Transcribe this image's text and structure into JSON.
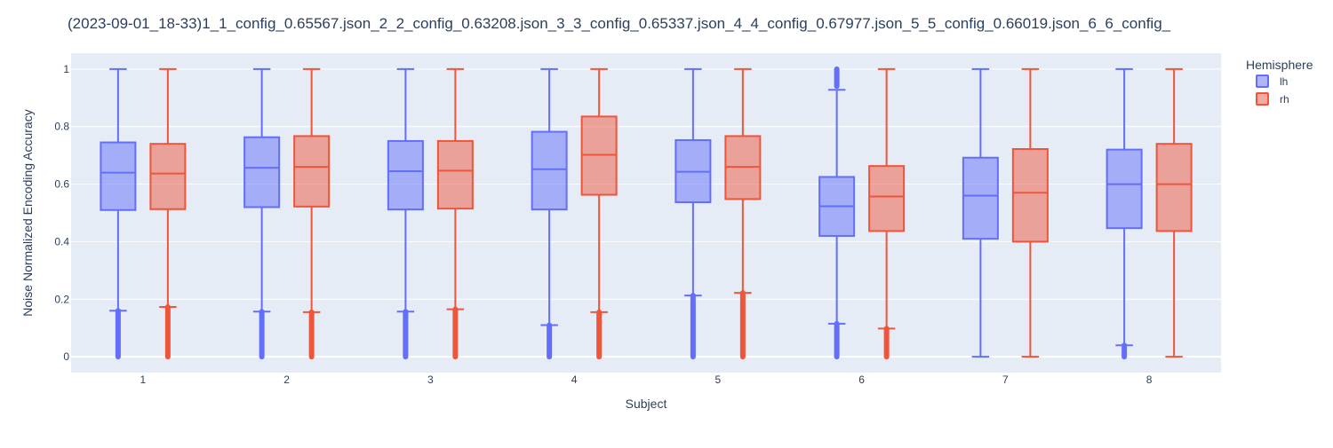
{
  "chart_data": {
    "type": "box",
    "title": "(2023-09-01_18-33)1_1_config_0.65567.json_2_2_config_0.63208.json_3_3_config_0.65337.json_4_4_config_0.67977.json_5_5_config_0.66019.json_6_6_config_",
    "xlabel": "Subject",
    "ylabel": "Noise Normalized Encoding Accuracy",
    "ylim": [
      -0.055,
      1.055
    ],
    "yticks": [
      "0",
      "0.2",
      "0.4",
      "0.6",
      "0.8",
      "1"
    ],
    "grid": true,
    "legend": {
      "title": "Hemisphere",
      "position": "top-right"
    },
    "categories": [
      "1",
      "2",
      "3",
      "4",
      "5",
      "6",
      "7",
      "8"
    ],
    "series": [
      {
        "name": "lh",
        "color": "#636efa",
        "boxes": [
          {
            "lower_fence": 0.16,
            "q1": 0.51,
            "median": 0.64,
            "q3": 0.745,
            "upper_fence": 1.0,
            "outliers_low": [
              0,
              0.16
            ],
            "outliers_high": []
          },
          {
            "lower_fence": 0.157,
            "q1": 0.52,
            "median": 0.657,
            "q3": 0.763,
            "upper_fence": 1.0,
            "outliers_low": [
              0,
              0.157
            ],
            "outliers_high": []
          },
          {
            "lower_fence": 0.157,
            "q1": 0.512,
            "median": 0.645,
            "q3": 0.75,
            "upper_fence": 1.0,
            "outliers_low": [
              0,
              0.157
            ],
            "outliers_high": []
          },
          {
            "lower_fence": 0.11,
            "q1": 0.512,
            "median": 0.652,
            "q3": 0.782,
            "upper_fence": 1.0,
            "outliers_low": [
              0,
              0.11
            ],
            "outliers_high": []
          },
          {
            "lower_fence": 0.213,
            "q1": 0.537,
            "median": 0.643,
            "q3": 0.753,
            "upper_fence": 1.0,
            "outliers_low": [
              0,
              0.213
            ],
            "outliers_high": []
          },
          {
            "lower_fence": 0.115,
            "q1": 0.42,
            "median": 0.523,
            "q3": 0.625,
            "upper_fence": 0.928,
            "outliers_low": [
              0,
              0.115
            ],
            "outliers_high": [
              0.94,
              1.0
            ]
          },
          {
            "lower_fence": 0.0,
            "q1": 0.41,
            "median": 0.56,
            "q3": 0.692,
            "upper_fence": 1.0,
            "outliers_low": [],
            "outliers_high": []
          },
          {
            "lower_fence": 0.04,
            "q1": 0.447,
            "median": 0.6,
            "q3": 0.72,
            "upper_fence": 1.0,
            "outliers_low": [
              0,
              0.04
            ],
            "outliers_high": []
          }
        ]
      },
      {
        "name": "rh",
        "color": "#ef553b",
        "boxes": [
          {
            "lower_fence": 0.173,
            "q1": 0.513,
            "median": 0.637,
            "q3": 0.74,
            "upper_fence": 1.0,
            "outliers_low": [
              0,
              0.173
            ],
            "outliers_high": []
          },
          {
            "lower_fence": 0.155,
            "q1": 0.522,
            "median": 0.66,
            "q3": 0.767,
            "upper_fence": 1.0,
            "outliers_low": [
              0,
              0.155
            ],
            "outliers_high": []
          },
          {
            "lower_fence": 0.165,
            "q1": 0.515,
            "median": 0.647,
            "q3": 0.75,
            "upper_fence": 1.0,
            "outliers_low": [
              0,
              0.165
            ],
            "outliers_high": []
          },
          {
            "lower_fence": 0.155,
            "q1": 0.563,
            "median": 0.702,
            "q3": 0.835,
            "upper_fence": 1.0,
            "outliers_low": [
              0,
              0.155
            ],
            "outliers_high": []
          },
          {
            "lower_fence": 0.222,
            "q1": 0.548,
            "median": 0.66,
            "q3": 0.767,
            "upper_fence": 1.0,
            "outliers_low": [
              0,
              0.222
            ],
            "outliers_high": []
          },
          {
            "lower_fence": 0.098,
            "q1": 0.437,
            "median": 0.557,
            "q3": 0.663,
            "upper_fence": 1.0,
            "outliers_low": [
              0,
              0.098
            ],
            "outliers_high": []
          },
          {
            "lower_fence": 0.0,
            "q1": 0.4,
            "median": 0.57,
            "q3": 0.722,
            "upper_fence": 1.0,
            "outliers_low": [],
            "outliers_high": []
          },
          {
            "lower_fence": 0.0,
            "q1": 0.437,
            "median": 0.6,
            "q3": 0.74,
            "upper_fence": 1.0,
            "outliers_low": [],
            "outliers_high": []
          }
        ]
      }
    ]
  }
}
